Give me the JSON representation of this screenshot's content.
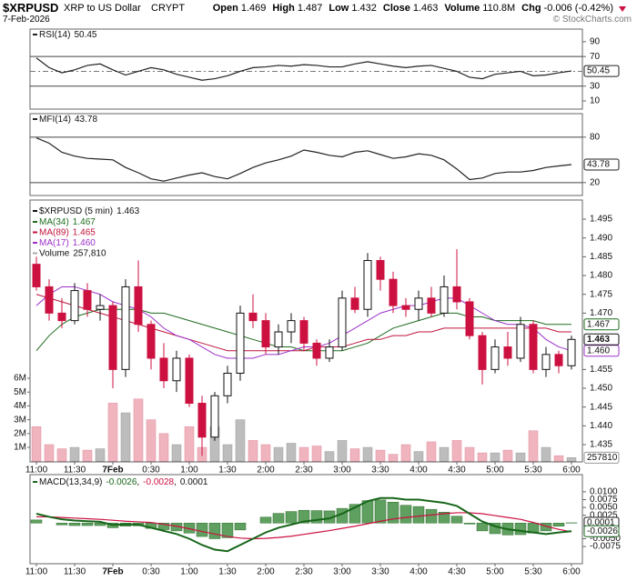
{
  "header": {
    "symbol": "$XRPUSD",
    "name": "XRP to US Dollar",
    "exchange": "CRYPT",
    "date": "7-Feb-2026",
    "credit": "© StockCharts.com",
    "quote": [
      {
        "label": "Open",
        "value": 1.469
      },
      {
        "label": "High",
        "value": 1.487
      },
      {
        "label": "Low",
        "value": 1.432
      },
      {
        "label": "Close",
        "value": 1.463
      },
      {
        "label": "Volume",
        "value": "110.8M"
      },
      {
        "label": "Chg",
        "value": "-0.006 (-0.42%)"
      }
    ]
  },
  "chart_data": [
    {
      "type": "line",
      "title": "RSI(14)",
      "color": "#222222",
      "ylim": [
        -1,
        107
      ],
      "yticks": [
        90,
        70,
        30,
        10
      ],
      "levels": [
        70,
        30
      ],
      "midline": 50,
      "values": [
        68,
        55,
        48,
        52,
        58,
        60,
        52,
        45,
        50,
        55,
        52,
        46,
        42,
        38,
        40,
        44,
        50,
        55,
        56,
        58,
        57,
        59,
        58,
        56,
        56,
        60,
        63,
        60,
        57,
        55,
        57,
        58,
        54,
        50,
        42,
        40,
        46,
        48,
        50,
        44,
        45,
        48,
        50.45
      ]
    },
    {
      "type": "line",
      "title": "MFI(14)",
      "color": "#222222",
      "ylim": [
        3,
        111
      ],
      "yticks": [
        80,
        20
      ],
      "levels": [
        80,
        20
      ],
      "values": [
        79,
        72,
        60,
        55,
        52,
        51,
        50,
        40,
        33,
        25,
        22,
        26,
        30,
        33,
        28,
        25,
        32,
        40,
        46,
        50,
        55,
        63,
        60,
        56,
        54,
        60,
        62,
        57,
        52,
        54,
        58,
        56,
        50,
        38,
        24,
        26,
        32,
        34,
        34,
        36,
        40,
        42,
        43.78
      ]
    },
    {
      "type": "candlestick",
      "title": "$XRPUSD (5 min)",
      "day_break": 6,
      "up_color": "#ffffff",
      "down_color": "#cc1040",
      "categories": [
        "11:00",
        null,
        null,
        "11:30",
        null,
        null,
        "7Feb",
        null,
        null,
        "0:30",
        null,
        null,
        "1:00",
        null,
        null,
        "1:30",
        null,
        null,
        "2:00",
        null,
        null,
        "2:30",
        null,
        null,
        "3:00",
        null,
        null,
        "3:30",
        null,
        null,
        "4:00",
        null,
        null,
        "4:30",
        null,
        null,
        "5:00",
        null,
        null,
        "5:30",
        null,
        null,
        "6:00"
      ],
      "ylim": [
        1.4304,
        1.5001
      ],
      "yticks": [
        1.435,
        {
          "value": 1.44,
          "label": "1.440"
        },
        1.445,
        {
          "value": 1.45,
          "label": "1.450"
        },
        1.455,
        {
          "value": 1.47,
          "label": "1.470"
        },
        1.475,
        {
          "value": 1.48,
          "label": "1.480"
        },
        1.485,
        {
          "value": 1.49,
          "label": "1.490"
        },
        1.495
      ],
      "open": [
        1.483,
        1.477,
        1.47,
        1.468,
        1.476,
        1.471,
        1.472,
        1.455,
        1.477,
        1.467,
        1.458,
        1.452,
        1.458,
        1.446,
        1.437,
        1.448,
        1.454,
        1.47,
        1.468,
        1.461,
        1.465,
        1.468,
        1.462,
        1.458,
        1.461,
        1.474,
        1.471,
        1.484,
        1.479,
        1.472,
        1.471,
        1.474,
        1.47,
        1.477,
        1.473,
        1.464,
        1.455,
        1.461,
        1.458,
        1.467,
        1.455,
        1.459,
        1.456
      ],
      "high": [
        1.485,
        1.479,
        1.474,
        1.478,
        1.478,
        1.475,
        1.473,
        1.479,
        1.484,
        1.468,
        1.462,
        1.46,
        1.459,
        1.448,
        1.449,
        1.456,
        1.472,
        1.475,
        1.47,
        1.467,
        1.47,
        1.469,
        1.463,
        1.463,
        1.476,
        1.477,
        1.486,
        1.485,
        1.481,
        1.474,
        1.476,
        1.477,
        1.48,
        1.487,
        1.474,
        1.465,
        1.463,
        1.465,
        1.469,
        1.468,
        1.461,
        1.46,
        1.464
      ],
      "low": [
        1.476,
        1.468,
        1.466,
        1.467,
        1.469,
        1.468,
        1.45,
        1.453,
        1.465,
        1.455,
        1.45,
        1.449,
        1.445,
        1.432,
        1.436,
        1.446,
        1.452,
        1.466,
        1.459,
        1.459,
        1.462,
        1.46,
        1.456,
        1.457,
        1.46,
        1.47,
        1.469,
        1.476,
        1.47,
        1.469,
        1.468,
        1.469,
        1.469,
        1.471,
        1.463,
        1.451,
        1.454,
        1.456,
        1.457,
        1.454,
        1.453,
        1.454,
        1.455
      ],
      "close": [
        1.477,
        1.47,
        1.468,
        1.476,
        1.471,
        1.472,
        1.455,
        1.477,
        1.467,
        1.458,
        1.452,
        1.458,
        1.446,
        1.437,
        1.448,
        1.454,
        1.47,
        1.468,
        1.461,
        1.465,
        1.468,
        1.462,
        1.458,
        1.461,
        1.474,
        1.471,
        1.484,
        1.479,
        1.472,
        1.471,
        1.474,
        1.47,
        1.477,
        1.473,
        1.464,
        1.455,
        1.461,
        1.458,
        1.467,
        1.455,
        1.459,
        1.456,
        1.463
      ],
      "series": [
        {
          "name": "MA(34)",
          "color": "#1e6b1e",
          "box": true,
          "values": [
            1.46,
            1.464,
            1.467,
            1.469,
            1.47,
            1.471,
            1.471,
            1.471,
            1.471,
            1.47,
            1.47,
            1.469,
            1.468,
            1.467,
            1.466,
            1.465,
            1.464,
            1.463,
            1.462,
            1.461,
            1.461,
            1.46,
            1.46,
            1.46,
            1.46,
            1.461,
            1.462,
            1.464,
            1.466,
            1.467,
            1.468,
            1.469,
            1.47,
            1.47,
            1.469,
            1.469,
            1.468,
            1.468,
            1.468,
            1.468,
            1.467,
            1.467,
            1.467
          ]
        },
        {
          "name": "MA(89)",
          "color": "#c0143c",
          "box": false,
          "values": [
            1.475,
            1.474,
            1.473,
            1.472,
            1.471,
            1.47,
            1.469,
            1.468,
            1.467,
            1.466,
            1.465,
            1.464,
            1.463,
            1.462,
            1.461,
            1.46,
            1.46,
            1.46,
            1.46,
            1.46,
            1.46,
            1.46,
            1.461,
            1.461,
            1.461,
            1.462,
            1.463,
            1.463,
            1.464,
            1.464,
            1.465,
            1.465,
            1.466,
            1.466,
            1.466,
            1.466,
            1.466,
            1.466,
            1.466,
            1.466,
            1.466,
            1.465,
            1.465
          ]
        },
        {
          "name": "MA(17)",
          "color": "#9b30c8",
          "box": true,
          "values": [
            1.472,
            1.475,
            1.477,
            1.477,
            1.476,
            1.475,
            1.473,
            1.472,
            1.471,
            1.469,
            1.466,
            1.464,
            1.463,
            1.461,
            1.459,
            1.458,
            1.458,
            1.458,
            1.459,
            1.459,
            1.46,
            1.461,
            1.461,
            1.462,
            1.464,
            1.466,
            1.468,
            1.47,
            1.471,
            1.472,
            1.472,
            1.473,
            1.474,
            1.474,
            1.472,
            1.47,
            1.468,
            1.467,
            1.467,
            1.466,
            1.463,
            1.461,
            1.46
          ],
          "value_labels": [
            null,
            null,
            null,
            null,
            null,
            null,
            null,
            null,
            null,
            null,
            null,
            null,
            null,
            null,
            null,
            null,
            null,
            null,
            null,
            null,
            null,
            null,
            null,
            null,
            null,
            null,
            null,
            null,
            null,
            null,
            null,
            null,
            null,
            null,
            null,
            null,
            null,
            null,
            null,
            null,
            null,
            null,
            "1.460"
          ]
        }
      ],
      "volume": {
        "name": "Volume",
        "up_color": "#bdbdbd",
        "down_color": "#f0b4bf",
        "ylim": [
          -50000,
          18900000
        ],
        "yticks": [
          {
            "value": 1000000,
            "label": "1M"
          },
          {
            "value": 2000000,
            "label": "2M"
          },
          {
            "value": 3000000,
            "label": "3M"
          },
          {
            "value": 4000000,
            "label": "4M"
          },
          {
            "value": 5000000,
            "label": "5M"
          },
          {
            "value": 6000000,
            "label": "6M"
          }
        ],
        "values": [
          2500000,
          1200000,
          900000,
          1000000,
          800000,
          900000,
          4200000,
          3500000,
          4500000,
          3000000,
          2000000,
          1200000,
          2500000,
          1000000,
          2500000,
          1200000,
          3000000,
          1500000,
          1200000,
          1000000,
          1300000,
          1000000,
          1100000,
          700000,
          1500000,
          900000,
          1000000,
          800000,
          500000,
          1200000,
          700000,
          1400000,
          1000000,
          1500000,
          1000000,
          600000,
          600000,
          800000,
          600000,
          2200000,
          1000000,
          400000,
          257810
        ],
        "value_labels": [
          null,
          null,
          null,
          null,
          null,
          null,
          null,
          null,
          null,
          null,
          null,
          null,
          null,
          null,
          null,
          null,
          null,
          null,
          null,
          null,
          null,
          null,
          null,
          null,
          null,
          null,
          null,
          null,
          null,
          null,
          null,
          null,
          null,
          null,
          null,
          null,
          null,
          null,
          null,
          null,
          null,
          null,
          "257,810"
        ]
      }
    },
    {
      "type": "macd",
      "title": "MACD(13,34,9)",
      "separator": ",",
      "day_break": 6,
      "categories": [
        "11:00",
        null,
        null,
        "11:30",
        null,
        null,
        "7Feb",
        null,
        null,
        "0:30",
        null,
        null,
        "1:00",
        null,
        null,
        "1:30",
        null,
        null,
        "2:00",
        null,
        null,
        "2:30",
        null,
        null,
        "3:00",
        null,
        null,
        "3:30",
        null,
        null,
        "4:00",
        null,
        null,
        "4:30",
        null,
        null,
        "5:00",
        null,
        null,
        "5:30",
        null,
        null,
        "6:00"
      ],
      "ylim": [
        -0.013,
        0.0155
      ],
      "yticks": [
        {
          "value": 0.01,
          "label": "0.0100"
        },
        {
          "value": 0.0075,
          "label": "0.0075"
        },
        {
          "value": 0.005,
          "label": "0.0050"
        },
        {
          "value": 0.0025,
          "label": "0.0025"
        },
        {
          "value": -0.005,
          "label": "-0.0050"
        },
        {
          "value": -0.0075,
          "label": "-0.0075"
        }
      ],
      "macd": {
        "color": "#17661a",
        "values": [
          0.003,
          0.002,
          0.0012,
          0.0008,
          0.0006,
          0.0004,
          -0.0006,
          -0.0004,
          -0.0005,
          -0.0015,
          -0.0025,
          -0.0035,
          -0.005,
          -0.007,
          -0.0085,
          -0.009,
          -0.007,
          -0.005,
          -0.003,
          -0.0015,
          -0.0005,
          0.0005,
          0.001,
          0.0015,
          0.003,
          0.005,
          0.007,
          0.008,
          0.008,
          0.0075,
          0.0075,
          0.007,
          0.0065,
          0.0055,
          0.003,
          0.0005,
          -0.001,
          -0.002,
          -0.0025,
          -0.003,
          -0.0035,
          -0.003,
          -0.0026
        ]
      },
      "signal": {
        "color": "#cc1040",
        "values": [
          0.002,
          0.002,
          0.0018,
          0.0016,
          0.0014,
          0.0012,
          0.0009,
          0.0006,
          0.0004,
          0.0002,
          -0.0004,
          -0.001,
          -0.0018,
          -0.0027,
          -0.0035,
          -0.0043,
          -0.0048,
          -0.005,
          -0.0049,
          -0.0046,
          -0.0042,
          -0.0036,
          -0.003,
          -0.0024,
          -0.0017,
          -0.001,
          -0.0002,
          0.0006,
          0.0013,
          0.0018,
          0.0022,
          0.0026,
          0.003,
          0.0033,
          0.0033,
          0.003,
          0.0024,
          0.0018,
          0.0012,
          0.0002,
          -0.001,
          -0.002,
          -0.0028
        ]
      },
      "histogram": {
        "color": "#5f9f5f",
        "values": [
          0.001,
          0,
          -0.0006,
          -0.0008,
          -0.0008,
          -0.0008,
          -0.0015,
          -0.001,
          -0.0009,
          -0.0017,
          -0.0021,
          -0.0025,
          -0.0032,
          -0.0043,
          -0.005,
          -0.0047,
          -0.0022,
          0,
          0.0019,
          0.0031,
          0.0037,
          0.0041,
          0.004,
          0.0039,
          0.0047,
          0.006,
          0.0072,
          0.0074,
          0.0067,
          0.0057,
          0.0053,
          0.0044,
          0.0035,
          0.0022,
          -0.0003,
          -0.0025,
          -0.0034,
          -0.0038,
          -0.0037,
          -0.0032,
          -0.0025,
          -0.001,
          0.0001
        ]
      }
    }
  ]
}
